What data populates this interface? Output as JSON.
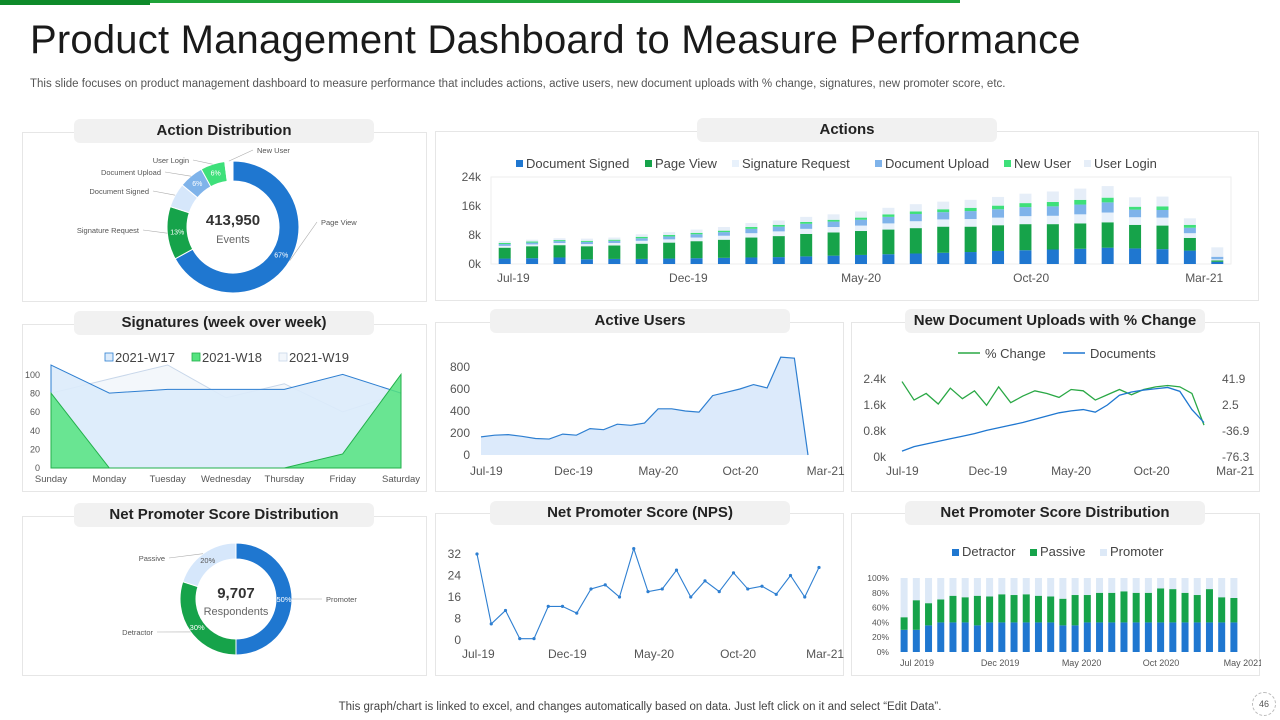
{
  "page": {
    "title": "Product Management Dashboard to Measure Performance",
    "subtitle": "This slide focuses on product management dashboard to measure performance that includes actions, active users, new document uploads with % change, signatures, new promoter score, etc.",
    "footer": "This graph/chart is linked to excel,  and changes automatically based on data. Just left click on it and select “Edit Data”.",
    "page_number": "46"
  },
  "colors": {
    "dark_blue": "#1565c0",
    "blue": "#1f77d0",
    "green": "#16a34a",
    "light_blue": "#d6e7fb",
    "mid_blue": "#7fb3ea",
    "mint": "#3ee07a",
    "pale": "#e8f1fb",
    "line_blue": "#2e7fd1",
    "area_fill": "#dceafb"
  },
  "chart_data": [
    {
      "id": "action_distribution",
      "type": "pie",
      "title": "Action Distribution",
      "center_value": "413,950",
      "center_label": "Events",
      "slices": [
        {
          "label": "Page View",
          "value": 67,
          "text": "67%"
        },
        {
          "label": "Signature  Request",
          "value": 13,
          "text": "13%"
        },
        {
          "label": "Document  Signed",
          "value": 6,
          "text": ""
        },
        {
          "label": "Document  Upload",
          "value": 6,
          "text": "6%"
        },
        {
          "label": "User Login",
          "value": 6,
          "text": "6%"
        },
        {
          "label": "New User",
          "value": 2,
          "text": ""
        }
      ]
    },
    {
      "id": "actions",
      "type": "bar",
      "title": "Actions",
      "stacked": true,
      "legend": [
        "Document Signed",
        "Page View",
        "Signature Request",
        "Document Upload",
        "New User",
        "User Login"
      ],
      "yticks": [
        "24k",
        "16k",
        "8k",
        "0k"
      ],
      "ylim": [
        0,
        24000
      ],
      "xticks": [
        "Jul-19",
        "Dec-19",
        "May-20",
        "Oct-20",
        "Mar-21"
      ],
      "series": [
        {
          "name": "Document Signed",
          "values": [
            1500,
            1600,
            1800,
            1300,
            1400,
            1400,
            1500,
            1600,
            1700,
            1800,
            1900,
            2100,
            2300,
            2500,
            2700,
            2900,
            3100,
            3300,
            3600,
            3800,
            4000,
            4200,
            4500,
            4300,
            4100,
            3700,
            600
          ]
        },
        {
          "name": "Page View",
          "values": [
            3000,
            3300,
            3400,
            3600,
            3700,
            4200,
            4400,
            4700,
            5000,
            5500,
            5800,
            6200,
            6400,
            6600,
            6800,
            7000,
            7200,
            7000,
            7100,
            7200,
            7000,
            7000,
            7000,
            6500,
            6500,
            3500,
            400
          ]
        },
        {
          "name": "Signature Request",
          "values": [
            500,
            500,
            600,
            600,
            700,
            800,
            900,
            1000,
            1100,
            1200,
            1300,
            1400,
            1500,
            1500,
            1700,
            1900,
            2000,
            2100,
            2100,
            2200,
            2300,
            2500,
            2700,
            2100,
            2200,
            1300,
            300
          ]
        },
        {
          "name": "Document Upload",
          "values": [
            500,
            500,
            500,
            600,
            600,
            700,
            800,
            900,
            1000,
            1200,
            1300,
            1400,
            1500,
            1600,
            1800,
            2000,
            2000,
            2200,
            2300,
            2500,
            2600,
            2700,
            2800,
            2100,
            2100,
            1500,
            700
          ]
        },
        {
          "name": "New User",
          "values": [
            300,
            300,
            300,
            300,
            300,
            400,
            400,
            400,
            400,
            500,
            500,
            500,
            500,
            600,
            700,
            700,
            800,
            900,
            1000,
            1100,
            1200,
            1300,
            1300,
            800,
            1000,
            800,
            0
          ]
        },
        {
          "name": "User Login",
          "values": [
            500,
            500,
            500,
            600,
            600,
            700,
            800,
            900,
            1000,
            1100,
            1200,
            1400,
            1500,
            1700,
            1800,
            2000,
            2100,
            2200,
            2400,
            2600,
            2900,
            3100,
            3200,
            2600,
            2700,
            1800,
            2600
          ]
        }
      ]
    },
    {
      "id": "signatures_week",
      "type": "area",
      "title": "Signatures (week over week)",
      "categories": [
        "Sunday",
        "Monday",
        "Tuesday",
        "Wednesday",
        "Thursday",
        "Friday",
        "Saturday"
      ],
      "yticks": [
        "100",
        "80",
        "60",
        "40",
        "20",
        "0"
      ],
      "ylim": [
        0,
        110
      ],
      "series": [
        {
          "name": "2021-W17",
          "values": [
            110,
            80,
            84,
            84,
            84,
            100,
            80
          ]
        },
        {
          "name": "2021-W18",
          "values": [
            80,
            0,
            0,
            0,
            0,
            15,
            100
          ]
        },
        {
          "name": "2021-W19",
          "values": [
            80,
            95,
            110,
            75,
            90,
            60,
            80
          ]
        }
      ]
    },
    {
      "id": "active_users",
      "type": "area",
      "title": "Active Users",
      "yticks": [
        "800",
        "600",
        "400",
        "200",
        "0"
      ],
      "ylim": [
        0,
        900
      ],
      "xticks": [
        "Jul-19",
        "Dec-19",
        "May-20",
        "Oct-20",
        "Mar-21"
      ],
      "values": [
        165,
        180,
        185,
        170,
        150,
        145,
        190,
        180,
        240,
        230,
        280,
        270,
        290,
        420,
        420,
        400,
        390,
        540,
        570,
        600,
        640,
        610,
        890,
        880,
        0
      ]
    },
    {
      "id": "new_document_uploads",
      "type": "line",
      "title": "New Document Uploads with % Change",
      "legend": [
        "% Change",
        "Documents"
      ],
      "yticks_left": [
        "2.4k",
        "1.6k",
        "0.8k",
        "0k"
      ],
      "yticks_right": [
        "41.9",
        "2.5",
        "-36.9",
        "-76.3"
      ],
      "ylim_left": [
        0,
        2400
      ],
      "ylim_right": [
        -76.3,
        41.9
      ],
      "xticks": [
        "Jul-19",
        "Dec-19",
        "May-20",
        "Oct-20",
        "Mar-21"
      ],
      "series": [
        {
          "name": "% Change",
          "values": [
            38,
            10,
            20,
            4,
            28,
            12,
            24,
            2,
            30,
            6,
            16,
            24,
            20,
            14,
            26,
            24,
            10,
            18,
            26,
            18,
            26,
            30,
            32,
            30,
            20,
            -28
          ]
        },
        {
          "name": "Documents",
          "values": [
            180,
            320,
            400,
            480,
            560,
            640,
            720,
            820,
            900,
            980,
            1060,
            1160,
            1260,
            1360,
            1420,
            1460,
            1380,
            1600,
            1900,
            2000,
            2060,
            2100,
            2140,
            2020,
            1460,
            1060
          ]
        }
      ]
    },
    {
      "id": "nps_distribution_donut",
      "type": "pie",
      "title": "Net Promoter Score Distribution",
      "center_value": "9,707",
      "center_label": "Respondents",
      "slices": [
        {
          "label": "Promoter",
          "value": 50,
          "text": "50%"
        },
        {
          "label": "Detractor",
          "value": 30,
          "text": "30%"
        },
        {
          "label": "Passive",
          "value": 20,
          "text": "20%"
        }
      ]
    },
    {
      "id": "nps",
      "type": "line",
      "title": "Net Promoter Score (NPS)",
      "yticks": [
        "32",
        "24",
        "16",
        "8",
        "0"
      ],
      "ylim": [
        0,
        32
      ],
      "xticks": [
        "Jul-19",
        "Dec-19",
        "May-20",
        "Oct-20",
        "Mar-21"
      ],
      "values": [
        32,
        6,
        11,
        0.5,
        0.5,
        12.5,
        12.5,
        10,
        19,
        20.5,
        16,
        34,
        18,
        19,
        26,
        16,
        22,
        18,
        25,
        19,
        20,
        17,
        24,
        16,
        27
      ]
    },
    {
      "id": "nps_distribution_bars",
      "type": "bar",
      "title": "Net Promoter Score Distribution",
      "stacked": true,
      "legend": [
        "Detractor",
        "Passive",
        "Promoter"
      ],
      "yticks": [
        "100%",
        "80%",
        "60%",
        "40%",
        "20%",
        "0%"
      ],
      "ylim": [
        0,
        100
      ],
      "xticks": [
        "Jul 2019",
        "Dec 2019",
        "May 2020",
        "Oct 2020",
        "May 2021"
      ],
      "series": [
        {
          "name": "Detractor",
          "values": [
            30,
            30,
            36,
            40,
            40,
            40,
            36,
            40,
            40,
            40,
            40,
            40,
            40,
            36,
            36,
            40,
            40,
            40,
            40,
            40,
            40,
            40,
            40,
            40,
            40,
            40,
            40,
            40
          ]
        },
        {
          "name": "Passive",
          "values": [
            17,
            40,
            30,
            31,
            36,
            34,
            40,
            35,
            38,
            37,
            38,
            36,
            35,
            36,
            41,
            37,
            40,
            40,
            42,
            40,
            40,
            46,
            45,
            40,
            37,
            45,
            34,
            33
          ]
        },
        {
          "name": "Promoter",
          "values": [
            53,
            30,
            34,
            29,
            24,
            26,
            24,
            25,
            22,
            23,
            22,
            24,
            25,
            28,
            23,
            23,
            20,
            20,
            18,
            20,
            20,
            14,
            15,
            20,
            23,
            15,
            26,
            27
          ]
        }
      ]
    }
  ]
}
